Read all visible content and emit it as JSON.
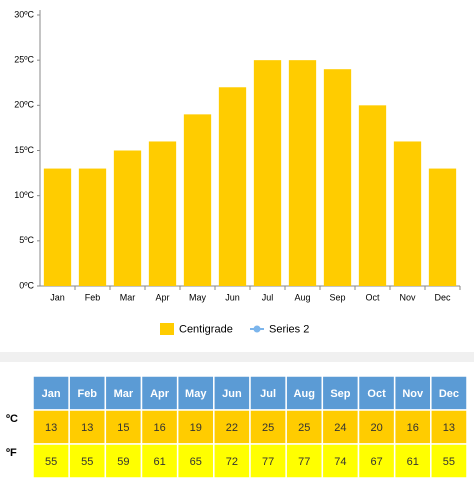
{
  "chart_data": {
    "type": "bar",
    "categories": [
      "Jan",
      "Feb",
      "Mar",
      "Apr",
      "May",
      "Jun",
      "Jul",
      "Aug",
      "Sep",
      "Oct",
      "Nov",
      "Dec"
    ],
    "series": [
      {
        "name": "Centigrade",
        "color": "#ffcc00",
        "values": [
          13,
          13,
          15,
          16,
          19,
          22,
          25,
          25,
          24,
          20,
          16,
          13
        ]
      },
      {
        "name": "Series 2",
        "color": "#7cb5ec",
        "values": [
          null,
          null,
          null,
          null,
          null,
          null,
          null,
          null,
          null,
          null,
          null,
          null
        ]
      }
    ],
    "ylim": [
      0,
      30
    ],
    "yticks": [
      {
        "value": 0,
        "label": "0ºC"
      },
      {
        "value": 5,
        "label": "5ºC"
      },
      {
        "value": 10,
        "label": "10ºC"
      },
      {
        "value": 15,
        "label": "15ºC"
      },
      {
        "value": 20,
        "label": "20ºC"
      },
      {
        "value": 25,
        "label": "25ºC"
      },
      {
        "value": 30,
        "label": "30ºC"
      }
    ],
    "grid": false,
    "legend": "bottom"
  },
  "table": {
    "row_labels": [
      "ºC",
      "ºF"
    ],
    "fahrenheit": [
      55,
      55,
      59,
      61,
      65,
      72,
      77,
      77,
      74,
      67,
      61,
      55
    ]
  }
}
